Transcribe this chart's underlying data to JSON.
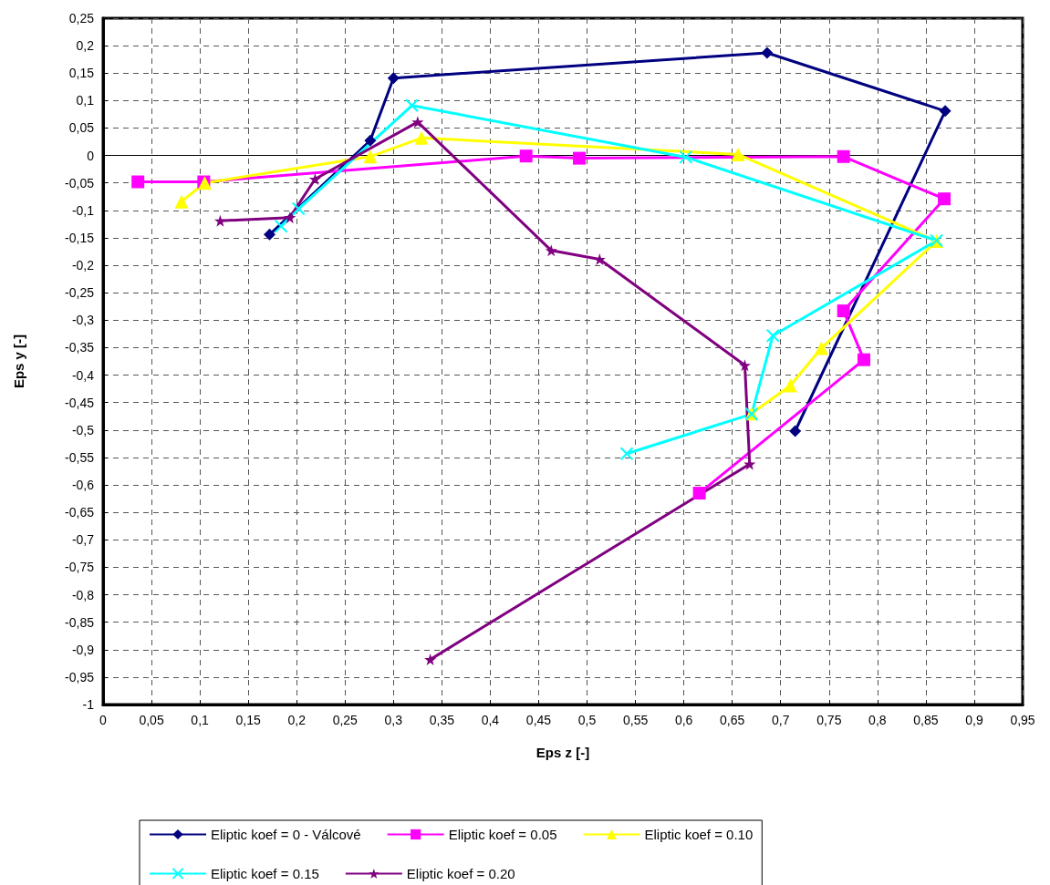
{
  "chart_data": {
    "type": "line",
    "xlabel": "Eps z [-]",
    "ylabel": "Eps y [-]",
    "series": [
      {
        "name": "Eliptic koef = 0 - Válcové",
        "color": "#000080",
        "marker": "diamond",
        "x": [
          0.172,
          0.276,
          0.3,
          0.686,
          0.87,
          0.715
        ],
        "values": [
          -0.144,
          0.027,
          0.141,
          0.187,
          0.081,
          -0.502
        ]
      },
      {
        "name": "Eliptic koef = 0.05",
        "color": "#ff00ff",
        "marker": "square",
        "x": [
          0.036,
          0.104,
          0.437,
          0.492,
          0.765,
          0.869,
          0.765,
          0.786,
          0.616
        ],
        "values": [
          -0.048,
          -0.048,
          -0.001,
          -0.005,
          -0.002,
          -0.079,
          -0.283,
          -0.372,
          -0.615
        ]
      },
      {
        "name": "Eliptic koef = 0.10",
        "color": "#ffff00",
        "marker": "triangle",
        "x": [
          0.081,
          0.105,
          0.276,
          0.329,
          0.656,
          0.861,
          0.742,
          0.71,
          0.67
        ],
        "values": [
          -0.084,
          -0.05,
          -0.002,
          0.032,
          0.002,
          -0.156,
          -0.351,
          -0.419,
          -0.47
        ]
      },
      {
        "name": "Eliptic koef = 0.15",
        "color": "#00ffff",
        "marker": "cross",
        "x": [
          0.184,
          0.202,
          0.319,
          0.602,
          0.861,
          0.692,
          0.67,
          0.541
        ],
        "values": [
          -0.129,
          -0.097,
          0.091,
          -0.003,
          -0.155,
          -0.328,
          -0.471,
          -0.543
        ]
      },
      {
        "name": "Eliptic koef = 0.20",
        "color": "#800080",
        "marker": "star",
        "x": [
          0.121,
          0.193,
          0.219,
          0.325,
          0.463,
          0.513,
          0.663,
          0.668,
          0.338
        ],
        "values": [
          -0.119,
          -0.113,
          -0.043,
          0.061,
          -0.173,
          -0.189,
          -0.382,
          -0.562,
          -0.918
        ]
      }
    ],
    "xlim": [
      0,
      0.95
    ],
    "xticks": [
      0,
      {
        "value": 0.05,
        "label": "0,05"
      },
      {
        "value": 0.1,
        "label": "0,1"
      },
      {
        "value": 0.15,
        "label": "0,15"
      },
      {
        "value": 0.2,
        "label": "0,2"
      },
      {
        "value": 0.25,
        "label": "0,25"
      },
      {
        "value": 0.3,
        "label": "0,3"
      },
      {
        "value": 0.35,
        "label": "0,35"
      },
      {
        "value": 0.4,
        "label": "0,4"
      },
      {
        "value": 0.45,
        "label": "0,45"
      },
      {
        "value": 0.5,
        "label": "0,5"
      },
      {
        "value": 0.55,
        "label": "0,55"
      },
      {
        "value": 0.6,
        "label": "0,6"
      },
      {
        "value": 0.65,
        "label": "0,65"
      },
      {
        "value": 0.7,
        "label": "0,7"
      },
      {
        "value": 0.75,
        "label": "0,75"
      },
      {
        "value": 0.8,
        "label": "0,8"
      },
      {
        "value": 0.85,
        "label": "0,85"
      },
      {
        "value": 0.9,
        "label": "0,9"
      },
      {
        "value": 0.95,
        "label": "0,95"
      }
    ],
    "ylim": [
      -1,
      0.25
    ],
    "yticks": [
      -1,
      {
        "value": -0.95,
        "label": "-0,95"
      },
      {
        "value": -0.9,
        "label": "-0,9"
      },
      {
        "value": -0.85,
        "label": "-0,85"
      },
      {
        "value": -0.8,
        "label": "-0,8"
      },
      {
        "value": -0.75,
        "label": "-0,75"
      },
      {
        "value": -0.7,
        "label": "-0,7"
      },
      {
        "value": -0.65,
        "label": "-0,65"
      },
      {
        "value": -0.6,
        "label": "-0,6"
      },
      {
        "value": -0.55,
        "label": "-0,55"
      },
      {
        "value": -0.5,
        "label": "-0,5"
      },
      {
        "value": -0.45,
        "label": "-0,45"
      },
      {
        "value": -0.4,
        "label": "-0,4"
      },
      {
        "value": -0.35,
        "label": "-0,35"
      },
      {
        "value": -0.3,
        "label": "-0,3"
      },
      {
        "value": -0.25,
        "label": "-0,25"
      },
      {
        "value": -0.2,
        "label": "-0,2"
      },
      {
        "value": -0.15,
        "label": "-0,15"
      },
      {
        "value": -0.1,
        "label": "-0,1"
      },
      {
        "value": -0.05,
        "label": "-0,05"
      },
      0,
      {
        "value": 0.05,
        "label": "0,05"
      },
      {
        "value": 0.1,
        "label": "0,1"
      },
      {
        "value": 0.15,
        "label": "0,15"
      },
      {
        "value": 0.2,
        "label": "0,2"
      },
      {
        "value": 0.25,
        "label": "0,25"
      }
    ],
    "ref_lines": [
      {
        "axis": "y",
        "value": 0,
        "color": "#000000",
        "line_style": "solid"
      }
    ],
    "grid": true,
    "legend": "bottom",
    "line_style": "solid"
  }
}
